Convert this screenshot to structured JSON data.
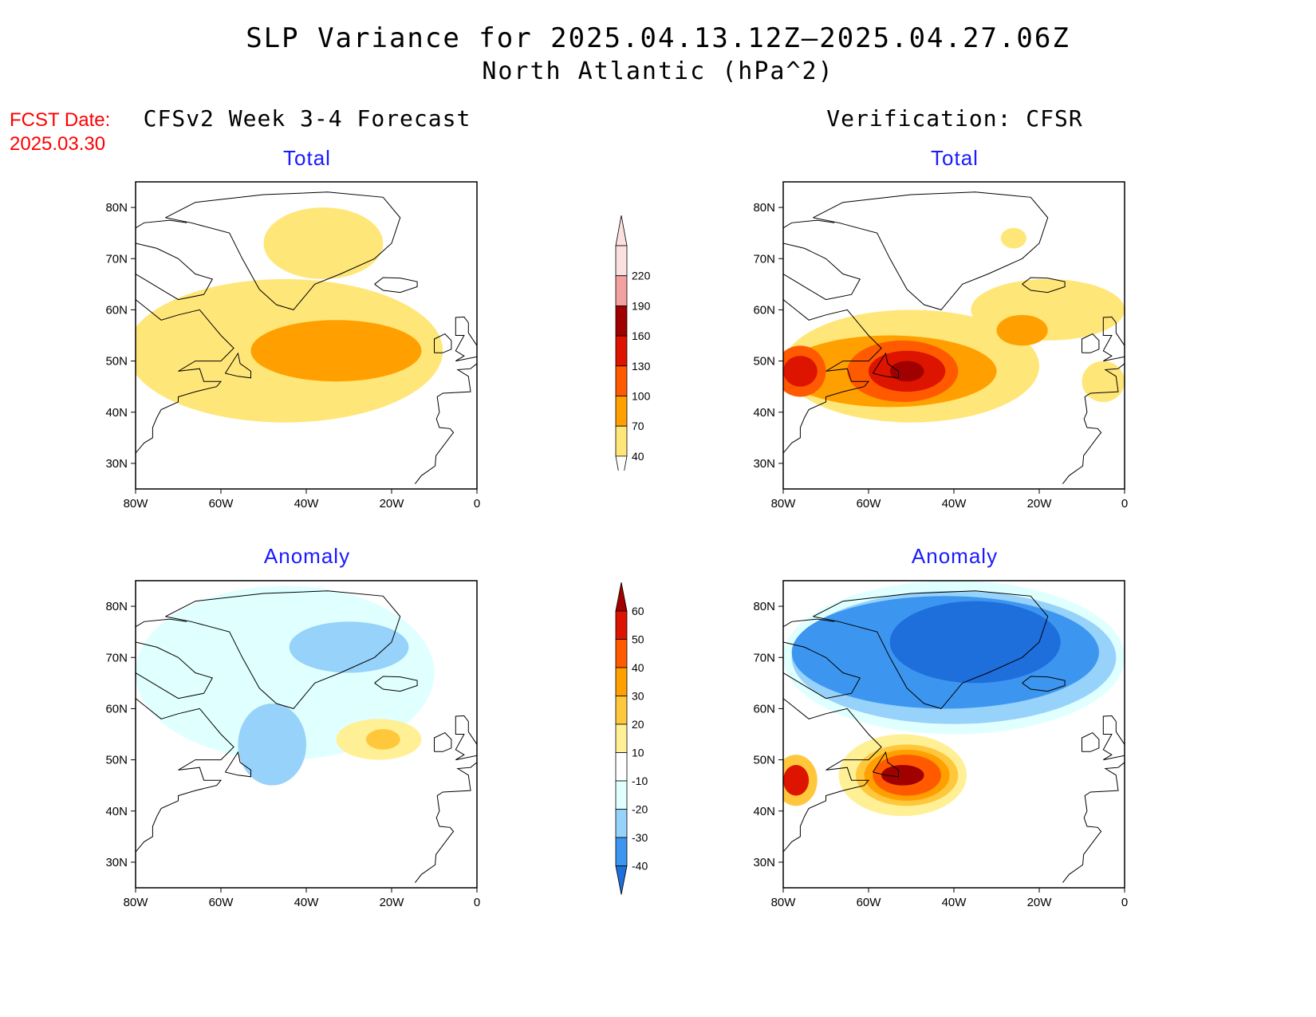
{
  "title": {
    "line1": "SLP Variance for 2025.04.13.12Z—2025.04.27.06Z",
    "line2": "North Atlantic (hPa^2)"
  },
  "forecast_date": {
    "label": "FCST Date:",
    "value": "2025.03.30"
  },
  "columns": {
    "left": "CFSv2 Week 3-4 Forecast",
    "right": "Verification: CFSR"
  },
  "panels": {
    "fcst_total": "Total",
    "verif_total": "Total",
    "fcst_anomaly": "Anomaly",
    "verif_anomaly": "Anomaly"
  },
  "axes": {
    "lon_ticks": [
      "80W",
      "60W",
      "40W",
      "20W",
      "0"
    ],
    "lat_ticks": [
      "80N",
      "70N",
      "60N",
      "50N",
      "40N",
      "30N"
    ]
  },
  "colorbars": {
    "total": {
      "levels": [
        "220",
        "190",
        "160",
        "130",
        "100",
        "70",
        "40"
      ],
      "colors": [
        "#fbe0e0",
        "#f2a0a0",
        "#a00000",
        "#dc1400",
        "#ff5a00",
        "#ffa000",
        "#ffe678"
      ]
    },
    "anomaly": {
      "levels": [
        "60",
        "50",
        "40",
        "30",
        "20",
        "10",
        "-10",
        "-20",
        "-30",
        "-40"
      ],
      "colors": [
        "#a00000",
        "#dc1400",
        "#ff5a00",
        "#ffa000",
        "#ffc83c",
        "#fff096",
        "#ffffff",
        "#e0ffff",
        "#96d2fa",
        "#3c96f0",
        "#1e6edc"
      ]
    }
  },
  "chart_data": {
    "type": "heatmap",
    "lon_range": [
      -80,
      0
    ],
    "lat_range": [
      25,
      85
    ],
    "panels": [
      {
        "id": "fcst_total",
        "regions": [
          {
            "level": 40,
            "lon": -45,
            "lat": 52,
            "lon_radius": 37,
            "lat_radius": 14
          },
          {
            "level": 40,
            "lon": -36,
            "lat": 73,
            "lon_radius": 14,
            "lat_radius": 7
          },
          {
            "level": 70,
            "lon": -33,
            "lat": 52,
            "lon_radius": 20,
            "lat_radius": 6
          }
        ]
      },
      {
        "id": "verif_total",
        "regions": [
          {
            "level": 40,
            "lon": -50,
            "lat": 49,
            "lon_radius": 30,
            "lat_radius": 11
          },
          {
            "level": 40,
            "lon": -18,
            "lat": 60,
            "lon_radius": 18,
            "lat_radius": 6
          },
          {
            "level": 40,
            "lon": -26,
            "lat": 74,
            "lon_radius": 3,
            "lat_radius": 2
          },
          {
            "level": 40,
            "lon": -5,
            "lat": 46,
            "lon_radius": 5,
            "lat_radius": 4
          },
          {
            "level": 70,
            "lon": -24,
            "lat": 56,
            "lon_radius": 6,
            "lat_radius": 3
          },
          {
            "level": 70,
            "lon": -55,
            "lat": 48,
            "lon_radius": 25,
            "lat_radius": 7
          },
          {
            "level": 100,
            "lon": -52,
            "lat": 48,
            "lon_radius": 13,
            "lat_radius": 6
          },
          {
            "level": 100,
            "lon": -76,
            "lat": 48,
            "lon_radius": 6,
            "lat_radius": 5
          },
          {
            "level": 130,
            "lon": -51,
            "lat": 48,
            "lon_radius": 9,
            "lat_radius": 4
          },
          {
            "level": 130,
            "lon": -76,
            "lat": 48,
            "lon_radius": 4,
            "lat_radius": 3
          },
          {
            "level": 160,
            "lon": -51,
            "lat": 48,
            "lon_radius": 4,
            "lat_radius": 2
          }
        ]
      },
      {
        "id": "fcst_anomaly",
        "regions": [
          {
            "level": -10,
            "lon": -45,
            "lat": 67,
            "lon_radius": 35,
            "lat_radius": 17
          },
          {
            "level": -20,
            "lon": -48,
            "lat": 53,
            "lon_radius": 8,
            "lat_radius": 8
          },
          {
            "level": -20,
            "lon": -30,
            "lat": 72,
            "lon_radius": 14,
            "lat_radius": 5
          },
          {
            "level": 10,
            "lon": -23,
            "lat": 54,
            "lon_radius": 10,
            "lat_radius": 4
          },
          {
            "level": 20,
            "lon": -22,
            "lat": 54,
            "lon_radius": 4,
            "lat_radius": 2
          }
        ]
      },
      {
        "id": "verif_anomaly",
        "regions": [
          {
            "level": -10,
            "lon": -40,
            "lat": 70,
            "lon_radius": 40,
            "lat_radius": 15
          },
          {
            "level": -20,
            "lon": -40,
            "lat": 70,
            "lon_radius": 38,
            "lat_radius": 13
          },
          {
            "level": -30,
            "lon": -42,
            "lat": 71,
            "lon_radius": 36,
            "lat_radius": 11
          },
          {
            "level": -40,
            "lon": -35,
            "lat": 73,
            "lon_radius": 20,
            "lat_radius": 8
          },
          {
            "level": 10,
            "lon": -52,
            "lat": 47,
            "lon_radius": 15,
            "lat_radius": 8
          },
          {
            "level": 20,
            "lon": -51,
            "lat": 47,
            "lon_radius": 12,
            "lat_radius": 6
          },
          {
            "level": 30,
            "lon": -51,
            "lat": 47,
            "lon_radius": 10,
            "lat_radius": 5
          },
          {
            "level": 40,
            "lon": -51,
            "lat": 47,
            "lon_radius": 8,
            "lat_radius": 4
          },
          {
            "level": 60,
            "lon": -52,
            "lat": 47,
            "lon_radius": 5,
            "lat_radius": 2
          },
          {
            "level": 20,
            "lon": -77,
            "lat": 46,
            "lon_radius": 5,
            "lat_radius": 5
          },
          {
            "level": 50,
            "lon": -77,
            "lat": 46,
            "lon_radius": 3,
            "lat_radius": 3
          }
        ]
      }
    ]
  }
}
